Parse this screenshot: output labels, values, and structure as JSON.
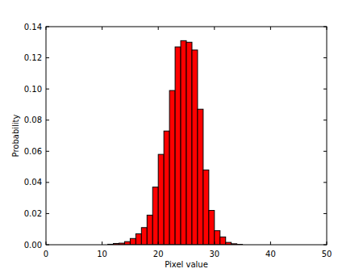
{
  "chart_data": {
    "type": "histogram",
    "x_label": "Pixel value",
    "y_label": "Probability",
    "bins": [
      11,
      12,
      13,
      14,
      15,
      16,
      17,
      18,
      19,
      20,
      21,
      22,
      23,
      24,
      25,
      26,
      27,
      28,
      29,
      30,
      31,
      32,
      33,
      34,
      35
    ],
    "values": [
      0.0003,
      0.0008,
      0.001,
      0.002,
      0.004,
      0.007,
      0.011,
      0.019,
      0.037,
      0.058,
      0.073,
      0.099,
      0.127,
      0.131,
      0.13,
      0.125,
      0.087,
      0.048,
      0.022,
      0.009,
      0.005,
      0.0015,
      0.0006,
      0.0002
    ],
    "color": "#ff0000",
    "xlim": [
      0,
      50
    ],
    "xticks": [
      0,
      10,
      20,
      30,
      40,
      50
    ],
    "ylim": [
      0,
      0.14
    ],
    "yticks": [
      {
        "value": 0,
        "label": "0.00"
      },
      {
        "value": 0.02,
        "label": "0.02"
      },
      {
        "value": 0.04,
        "label": "0.04"
      },
      {
        "value": 0.06,
        "label": "0.06"
      },
      {
        "value": 0.08,
        "label": "0.08"
      },
      {
        "value": 0.1,
        "label": "0.10"
      },
      {
        "value": 0.12,
        "label": "0.12"
      },
      {
        "value": 0.14,
        "label": "0.14"
      }
    ],
    "grid": false
  }
}
